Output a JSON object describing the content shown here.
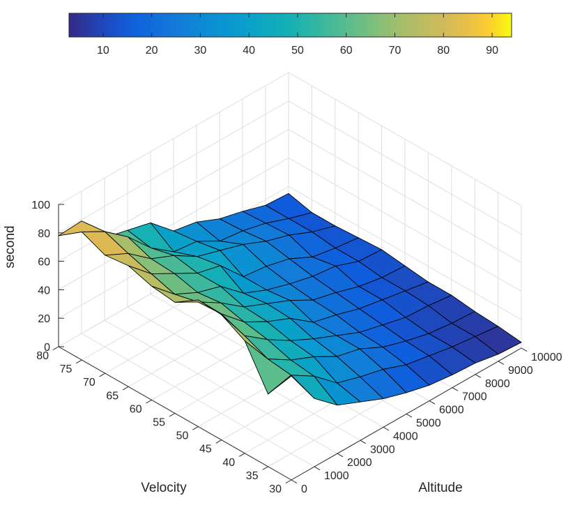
{
  "chart_data": {
    "type": "surface",
    "title": "",
    "xlabel": "Velocity",
    "ylabel": "Altitude",
    "zlabel": "second",
    "xlim": [
      30,
      80
    ],
    "ylim": [
      0,
      10000
    ],
    "zlim": [
      0,
      100
    ],
    "x_ticks": [
      30,
      35,
      40,
      45,
      50,
      55,
      60,
      65,
      70,
      75,
      80
    ],
    "y_ticks": [
      0,
      1000,
      2000,
      3000,
      4000,
      5000,
      6000,
      7000,
      8000,
      9000,
      10000
    ],
    "z_ticks": [
      0,
      20,
      40,
      60,
      80,
      100
    ],
    "colorbar": {
      "position": "top",
      "colormap": "parula",
      "range": [
        3,
        94
      ],
      "ticks": [
        10,
        20,
        30,
        40,
        50,
        60,
        70,
        80,
        90
      ]
    },
    "grid": true,
    "x": [
      30,
      35,
      40,
      45,
      50,
      55,
      60,
      65,
      70,
      75,
      80
    ],
    "y": [
      0,
      1000,
      2000,
      3000,
      4000,
      5000,
      6000,
      7000,
      8000,
      9000,
      10000
    ],
    "z": [
      [
        73,
        48,
        34,
        27,
        20,
        15,
        11,
        9,
        8,
        5,
        4
      ],
      [
        51,
        55,
        45,
        31,
        26,
        22,
        16,
        13,
        10,
        8,
        6
      ],
      [
        79,
        57,
        47,
        40,
        31,
        27,
        19,
        14,
        10,
        8,
        7
      ],
      [
        88,
        64,
        52,
        42,
        34,
        27,
        20,
        16,
        12,
        11,
        9
      ],
      [
        89,
        70,
        55,
        46,
        39,
        27,
        23,
        18,
        15,
        12,
        9
      ],
      [
        78,
        69,
        59,
        47,
        40,
        33,
        24,
        20,
        15,
        12,
        11
      ],
      [
        80,
        65,
        57,
        52,
        38,
        31,
        26,
        22,
        20,
        14,
        13
      ],
      [
        85,
        70,
        61,
        52,
        48,
        31,
        29,
        25,
        17,
        14,
        12
      ],
      [
        83,
        75,
        62,
        55,
        45,
        40,
        35,
        28,
        23,
        16,
        11
      ],
      [
        90,
        81,
        68,
        51,
        39,
        37,
        28,
        26,
        22,
        16,
        11
      ],
      [
        78,
        79,
        58,
        54,
        50,
        35,
        32,
        25,
        21,
        16,
        15
      ]
    ]
  }
}
